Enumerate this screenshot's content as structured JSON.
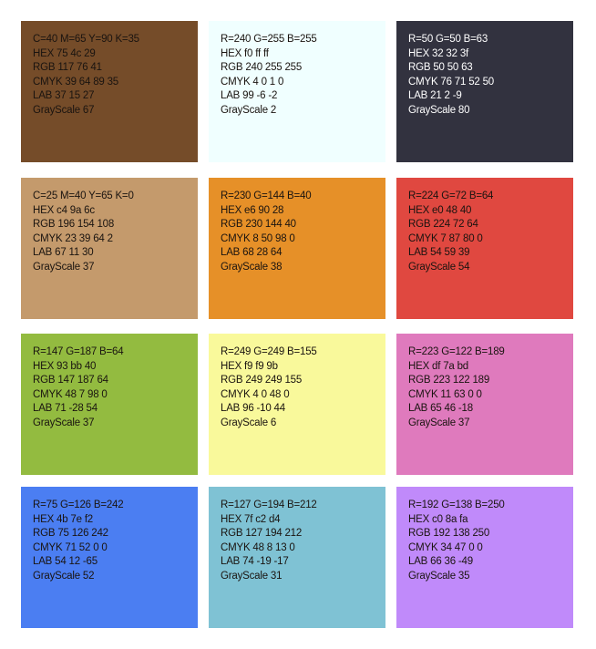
{
  "swatches": [
    {
      "color": "#754c29",
      "light_text": false,
      "lines": [
        "C=40 M=65 Y=90 K=35",
        "HEX 75 4c 29",
        "RGB 117 76 41",
        "CMYK 39 64 89 35",
        "LAB 37 15 27",
        "GrayScale 67"
      ]
    },
    {
      "color": "#f0ffff",
      "light_text": false,
      "lines": [
        "R=240 G=255 B=255",
        "HEX f0 ff ff",
        "RGB 240 255 255",
        "CMYK 4 0 1 0",
        "LAB 99 -6 -2",
        "GrayScale 2"
      ]
    },
    {
      "color": "#32323f",
      "light_text": true,
      "lines": [
        "R=50 G=50 B=63",
        "HEX 32 32 3f",
        "RGB 50 50 63",
        "CMYK 76 71 52 50",
        "LAB 21 2 -9",
        "GrayScale 80"
      ]
    },
    {
      "color": "#c49a6c",
      "light_text": false,
      "lines": [
        "C=25 M=40 Y=65 K=0",
        "HEX c4 9a 6c",
        "RGB 196 154 108",
        "CMYK 23 39 64 2",
        "LAB 67 11 30",
        "GrayScale 37"
      ]
    },
    {
      "color": "#e69028",
      "light_text": false,
      "lines": [
        "R=230 G=144 B=40",
        "HEX e6 90 28",
        "RGB 230 144 40",
        "CMYK 8 50 98 0",
        "LAB 68 28 64",
        "GrayScale 38"
      ]
    },
    {
      "color": "#e04840",
      "light_text": false,
      "lines": [
        "R=224 G=72 B=64",
        "HEX e0 48 40",
        "RGB 224 72 64",
        "CMYK 7 87 80 0",
        "LAB 54 59 39",
        "GrayScale 54"
      ]
    },
    {
      "color": "#93bb40",
      "light_text": false,
      "lines": [
        "R=147 G=187 B=64",
        "HEX 93 bb 40",
        "RGB 147 187 64",
        "CMYK 48 7 98 0",
        "LAB 71 -28 54",
        "GrayScale 37"
      ]
    },
    {
      "color": "#f9f99b",
      "light_text": false,
      "lines": [
        "R=249 G=249 B=155",
        "HEX f9 f9 9b",
        "RGB 249 249 155",
        "CMYK 4 0 48 0",
        "LAB 96 -10 44",
        "GrayScale 6"
      ]
    },
    {
      "color": "#df7abd",
      "light_text": false,
      "lines": [
        "R=223 G=122 B=189",
        "HEX df 7a bd",
        "RGB 223 122 189",
        "CMYK 11 63 0 0",
        "LAB 65 46 -18",
        "GrayScale 37"
      ]
    },
    {
      "color": "#4b7ef2",
      "light_text": false,
      "lines": [
        "R=75 G=126 B=242",
        "HEX 4b 7e f2",
        "RGB 75 126 242",
        "CMYK 71 52 0 0",
        "LAB 54 12 -65",
        "GrayScale 52"
      ]
    },
    {
      "color": "#7fc2d4",
      "light_text": false,
      "lines": [
        "R=127 G=194 B=212",
        "HEX 7f c2 d4",
        "RGB 127 194 212",
        "CMYK 48 8 13 0",
        "LAB 74 -19 -17",
        "GrayScale 31"
      ]
    },
    {
      "color": "#c08afa",
      "light_text": false,
      "lines": [
        "R=192 G=138 B=250",
        "HEX c0 8a fa",
        "RGB 192 138 250",
        "CMYK 34 47 0 0",
        "LAB 66 36 -49",
        "GrayScale 35"
      ]
    }
  ]
}
